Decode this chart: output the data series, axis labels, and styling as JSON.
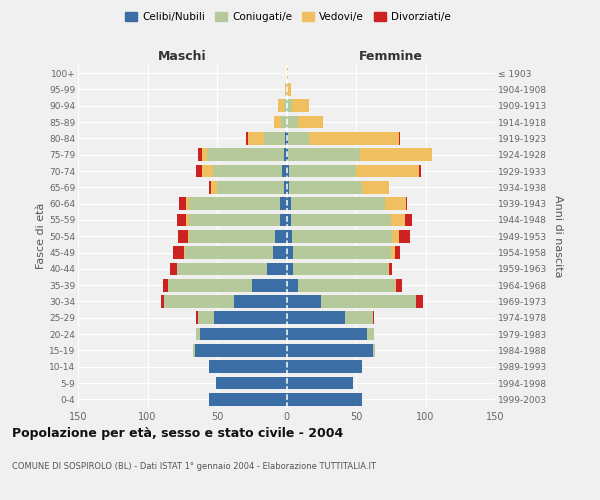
{
  "age_groups": [
    "0-4",
    "5-9",
    "10-14",
    "15-19",
    "20-24",
    "25-29",
    "30-34",
    "35-39",
    "40-44",
    "45-49",
    "50-54",
    "55-59",
    "60-64",
    "65-69",
    "70-74",
    "75-79",
    "80-84",
    "85-89",
    "90-94",
    "95-99",
    "100+"
  ],
  "birth_years": [
    "1999-2003",
    "1994-1998",
    "1989-1993",
    "1984-1988",
    "1979-1983",
    "1974-1978",
    "1969-1973",
    "1964-1968",
    "1959-1963",
    "1954-1958",
    "1949-1953",
    "1944-1948",
    "1939-1943",
    "1934-1938",
    "1929-1933",
    "1924-1928",
    "1919-1923",
    "1914-1918",
    "1909-1913",
    "1904-1908",
    "≤ 1903"
  ],
  "colors": {
    "celibi": "#3a6ea5",
    "coniugati": "#b5c99a",
    "vedovi": "#f0c060",
    "divorziati": "#cc2222"
  },
  "maschi": {
    "celibi": [
      56,
      51,
      56,
      66,
      62,
      52,
      38,
      25,
      14,
      10,
      8,
      5,
      5,
      2,
      3,
      2,
      1,
      0,
      0,
      0,
      0
    ],
    "coniugati": [
      0,
      0,
      0,
      1,
      3,
      12,
      50,
      60,
      65,
      63,
      62,
      65,
      65,
      48,
      50,
      55,
      15,
      4,
      2,
      0,
      0
    ],
    "vedovi": [
      0,
      0,
      0,
      0,
      0,
      0,
      0,
      0,
      0,
      1,
      1,
      2,
      2,
      4,
      8,
      4,
      12,
      5,
      4,
      1,
      0
    ],
    "divorziati": [
      0,
      0,
      0,
      0,
      0,
      1,
      2,
      4,
      5,
      8,
      7,
      7,
      5,
      2,
      4,
      3,
      1,
      0,
      0,
      0,
      0
    ]
  },
  "femmine": {
    "celibi": [
      54,
      48,
      54,
      62,
      58,
      42,
      25,
      8,
      5,
      5,
      4,
      3,
      3,
      2,
      2,
      1,
      1,
      0,
      0,
      0,
      0
    ],
    "coniugati": [
      0,
      0,
      0,
      2,
      5,
      20,
      68,
      70,
      68,
      70,
      72,
      72,
      68,
      52,
      48,
      52,
      15,
      8,
      4,
      1,
      0
    ],
    "vedovi": [
      0,
      0,
      0,
      0,
      0,
      0,
      0,
      1,
      1,
      3,
      5,
      10,
      15,
      20,
      45,
      52,
      65,
      18,
      12,
      2,
      1
    ],
    "divorziati": [
      0,
      0,
      0,
      0,
      0,
      1,
      5,
      4,
      2,
      4,
      8,
      5,
      1,
      0,
      2,
      0,
      1,
      0,
      0,
      0,
      0
    ]
  },
  "xlim": 150,
  "title": "Popolazione per età, sesso e stato civile - 2004",
  "subtitle": "COMUNE DI SOSPIROLO (BL) - Dati ISTAT 1° gennaio 2004 - Elaborazione TUTTITALIA.IT",
  "ylabel_left": "Fasce di età",
  "ylabel_right": "Anni di nascita",
  "xlabel_left": "Maschi",
  "xlabel_right": "Femmine",
  "legend_labels": [
    "Celibi/Nubili",
    "Coniugati/e",
    "Vedovi/e",
    "Divorziati/e"
  ],
  "background_color": "#f0f0f0"
}
